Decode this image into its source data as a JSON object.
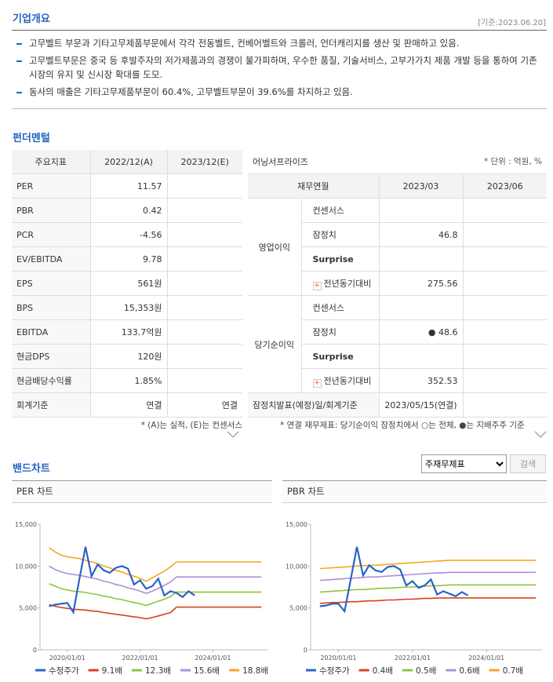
{
  "overview": {
    "title": "기업개요",
    "date": "[기준:2023.06.20]",
    "bullets": [
      "고무벨트 부문과 기타고무제품부문에서 각각 전동벨트, 컨베어벨트와 크롤러, 언더캐리지를 생산 및 판매하고 있음.",
      "고무벨트부문은 중국 등 후발주자의 저가제품과의 경쟁이 불가피하며, 우수한 품질, 기술서비스, 고부가가치 제품 개발 등을 통하여 기존 시장의 유지 및 신시장 확대를 도모.",
      "동사의 매출은 기타고무제품부문이 60.4%, 고무벨트부문이 39.6%를 차지하고 있음."
    ]
  },
  "fundamental": {
    "title": "펀더멘털",
    "indicators": {
      "header": [
        "주요지표",
        "2022/12(A)",
        "2023/12(E)"
      ],
      "rows": [
        [
          "PER",
          "11.57",
          null
        ],
        [
          "PBR",
          "0.42",
          null
        ],
        [
          "PCR",
          "-4.56",
          null
        ],
        [
          "EV/EBITDA",
          "9.78",
          null
        ],
        [
          "EPS",
          "561원",
          null
        ],
        [
          "BPS",
          "15,353원",
          null
        ],
        [
          "EBITDA",
          "133.7억원",
          null
        ],
        [
          "현금DPS",
          "120원",
          null
        ],
        [
          "현금배당수익률",
          "1.85%",
          null
        ],
        [
          "회계기준",
          "연결",
          "연결"
        ]
      ],
      "note": "* (A)는 실적, (E)는 컨센서스"
    },
    "earnings": {
      "title": "어닝서프라이즈",
      "unit": "* 단위 : 억원, %",
      "header": [
        "재무연월",
        "2023/03",
        "2023/06"
      ],
      "groups": [
        {
          "name": "영업이익",
          "rows": [
            [
              "컨센서스",
              null,
              null
            ],
            [
              "잠정치",
              "46.8",
              null
            ],
            [
              "Surprise",
              null,
              null
            ],
            [
              "전년동기대비",
              "275.56",
              null
            ]
          ]
        },
        {
          "name": "당기순이익",
          "rows": [
            [
              "컨센서스",
              null,
              null
            ],
            [
              "잠정치",
              "● 48.6",
              null
            ],
            [
              "Surprise",
              null,
              null
            ],
            [
              "전년동기대비",
              "352.53",
              null
            ]
          ]
        }
      ],
      "footer": [
        "잠정치발표(예정)일/회계기준",
        "2023/05/15(연결)",
        null
      ],
      "note": "* 연결 재무제표: 당기순이익 잠정치에서 ○는 전체, ●는 지배주주 기준"
    }
  },
  "band": {
    "title": "밴드차트",
    "select": "주재무제표",
    "button": "검색"
  },
  "chart_data": [
    {
      "type": "line",
      "title": "PER 차트",
      "x": [
        "2019/07",
        "2019/09",
        "2019/11",
        "2020/01",
        "2020/03",
        "2020/05",
        "2020/07",
        "2020/09",
        "2020/11",
        "2021/01",
        "2021/03",
        "2021/05",
        "2021/07",
        "2021/09",
        "2021/11",
        "2022/01",
        "2022/03",
        "2022/05",
        "2022/07",
        "2022/09",
        "2022/11",
        "2023/01",
        "2023/03",
        "2023/05",
        "2023/07",
        "2023/09",
        "2023/11",
        "2024/01",
        "2024/03",
        "2024/05",
        "2024/07",
        "2024/09",
        "2024/11",
        "2025/01",
        "2025/03",
        "2025/05"
      ],
      "xlim": [
        "2019/04",
        "2025/07"
      ],
      "xticks": [
        "2020/01/01",
        "2022/01/01",
        "2024/01/01"
      ],
      "ylim": [
        0,
        15000
      ],
      "yticks": [
        0,
        {
          "value": 5000,
          "label": "5,000"
        },
        {
          "value": 10000,
          "label": "10,000"
        },
        {
          "value": 15000,
          "label": "15,000"
        }
      ],
      "legend": "bottom",
      "series": [
        {
          "name": "수정주가",
          "color": "#2a62c9",
          "values": [
            5200,
            5400,
            5500,
            5600,
            4500,
            8500,
            12300,
            8800,
            10200,
            9500,
            9200,
            9800,
            10000,
            9700,
            7800,
            8300,
            7300,
            7600,
            8500,
            6500,
            7000,
            6800,
            6300,
            7000,
            6500,
            null,
            null,
            null,
            null,
            null,
            null,
            null,
            null,
            null,
            null,
            null
          ]
        },
        {
          "name": "9.1배",
          "color": "#d8411c",
          "values": [
            5400,
            5200,
            5050,
            4950,
            4850,
            4800,
            4750,
            4650,
            4600,
            4450,
            4350,
            4250,
            4150,
            4050,
            3950,
            3850,
            3700,
            3850,
            4050,
            4250,
            4450,
            5100,
            5100,
            5100,
            5100,
            5100,
            5100,
            5100,
            5100,
            5100,
            5100,
            5100,
            5100,
            5100,
            5100,
            5100
          ]
        },
        {
          "name": "12.3배",
          "color": "#8cc63f",
          "values": [
            7900,
            7600,
            7300,
            7150,
            7000,
            6950,
            6850,
            6700,
            6600,
            6400,
            6300,
            6100,
            6000,
            5800,
            5650,
            5500,
            5300,
            5550,
            5800,
            6050,
            6350,
            6900,
            6900,
            6900,
            6900,
            6900,
            6900,
            6900,
            6900,
            6900,
            6900,
            6900,
            6900,
            6900,
            6900,
            6900
          ]
        },
        {
          "name": "15.6배",
          "color": "#ad8fda",
          "values": [
            10000,
            9600,
            9300,
            9100,
            9000,
            8900,
            8750,
            8600,
            8450,
            8200,
            8050,
            7800,
            7650,
            7400,
            7250,
            7000,
            6750,
            7000,
            7350,
            7700,
            8100,
            8700,
            8700,
            8700,
            8700,
            8700,
            8700,
            8700,
            8700,
            8700,
            8700,
            8700,
            8700,
            8700,
            8700,
            8700
          ]
        },
        {
          "name": "18.8배",
          "color": "#f5a623",
          "values": [
            12200,
            11700,
            11300,
            11100,
            11000,
            10900,
            10700,
            10500,
            10300,
            10000,
            9800,
            9500,
            9300,
            9000,
            8800,
            8500,
            8200,
            8600,
            9000,
            9400,
            9900,
            10500,
            10500,
            10500,
            10500,
            10500,
            10500,
            10500,
            10500,
            10500,
            10500,
            10500,
            10500,
            10500,
            10500,
            10500
          ]
        }
      ]
    },
    {
      "type": "line",
      "title": "PBR 차트",
      "x": [
        "2019/07",
        "2019/09",
        "2019/11",
        "2020/01",
        "2020/03",
        "2020/05",
        "2020/07",
        "2020/09",
        "2020/11",
        "2021/01",
        "2021/03",
        "2021/05",
        "2021/07",
        "2021/09",
        "2021/11",
        "2022/01",
        "2022/03",
        "2022/05",
        "2022/07",
        "2022/09",
        "2022/11",
        "2023/01",
        "2023/03",
        "2023/05",
        "2023/07",
        "2023/09",
        "2023/11",
        "2024/01",
        "2024/03",
        "2024/05",
        "2024/07",
        "2024/09",
        "2024/11",
        "2025/01",
        "2025/03",
        "2025/05"
      ],
      "xlim": [
        "2019/04",
        "2025/07"
      ],
      "xticks": [
        "2020/01/01",
        "2022/01/01",
        "2024/01/01"
      ],
      "ylim": [
        0,
        15000
      ],
      "yticks": [
        0,
        {
          "value": 5000,
          "label": "5,000"
        },
        {
          "value": 10000,
          "label": "10,000"
        },
        {
          "value": 15000,
          "label": "15,000"
        }
      ],
      "legend": "bottom",
      "series": [
        {
          "name": "수정주가",
          "color": "#2a62c9",
          "values": [
            5200,
            5300,
            5500,
            5500,
            4600,
            8400,
            12300,
            8900,
            10100,
            9500,
            9300,
            9900,
            10000,
            9600,
            7700,
            8200,
            7400,
            7700,
            8400,
            6600,
            7000,
            6700,
            6400,
            6900,
            6500,
            null,
            null,
            null,
            null,
            null,
            null,
            null,
            null,
            null,
            null,
            null
          ]
        },
        {
          "name": "0.4배",
          "color": "#d8411c",
          "values": [
            5550,
            5600,
            5650,
            5650,
            5700,
            5750,
            5750,
            5800,
            5850,
            5850,
            5900,
            5950,
            5950,
            6000,
            6050,
            6050,
            6100,
            6150,
            6150,
            6200,
            6200,
            6200,
            6200,
            6200,
            6200,
            6200,
            6200,
            6200,
            6200,
            6200,
            6200,
            6200,
            6200,
            6200,
            6200,
            6200
          ]
        },
        {
          "name": "0.5배",
          "color": "#8cc63f",
          "values": [
            6900,
            6950,
            7000,
            7050,
            7100,
            7150,
            7200,
            7200,
            7250,
            7300,
            7350,
            7350,
            7400,
            7450,
            7500,
            7500,
            7550,
            7600,
            7650,
            7650,
            7700,
            7750,
            7750,
            7750,
            7750,
            7750,
            7750,
            7750,
            7750,
            7750,
            7750,
            7750,
            7750,
            7750,
            7750,
            7750
          ]
        },
        {
          "name": "0.6배",
          "color": "#ad8fda",
          "values": [
            8300,
            8350,
            8400,
            8450,
            8500,
            8550,
            8600,
            8650,
            8700,
            8700,
            8750,
            8800,
            8850,
            8900,
            8950,
            9000,
            9050,
            9100,
            9150,
            9200,
            9200,
            9250,
            9250,
            9250,
            9250,
            9250,
            9250,
            9250,
            9250,
            9250,
            9250,
            9250,
            9250,
            9250,
            9250,
            9250
          ]
        },
        {
          "name": "0.7배",
          "color": "#f5a623",
          "values": [
            9700,
            9750,
            9800,
            9850,
            9900,
            9950,
            10000,
            10050,
            10100,
            10100,
            10150,
            10200,
            10250,
            10300,
            10350,
            10400,
            10450,
            10500,
            10550,
            10600,
            10650,
            10700,
            10700,
            10700,
            10700,
            10700,
            10700,
            10700,
            10700,
            10700,
            10700,
            10700,
            10700,
            10700,
            10700,
            10700
          ]
        }
      ]
    }
  ]
}
